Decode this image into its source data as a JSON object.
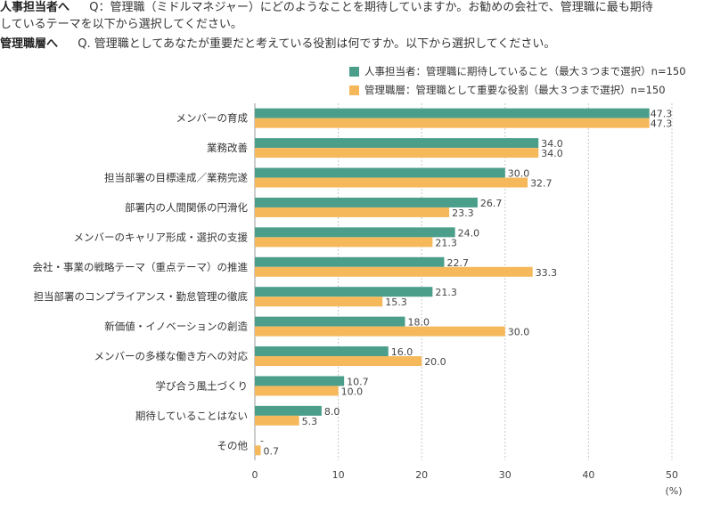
{
  "header": {
    "q1_tag": "人事担当者へ",
    "q1_text_line1": "Q：管理職（ミドルマネジャー）にどのようなことを期待していますか。お勧めの会社で、管理職に最も期待",
    "q1_text_line2": "しているテーマを以下から選択してください。",
    "q2_tag": "管理職層へ",
    "q2_text": "Q. 管理職としてあなたが重要だと考えている役割は何ですか。以下から選択してください。"
  },
  "chart_data": {
    "type": "bar",
    "orientation": "horizontal",
    "categories": [
      "メンバーの育成",
      "業務改善",
      "担当部署の目標達成／業務完遂",
      "部署内の人間関係の円滑化",
      "メンバーのキャリア形成・選択の支援",
      "会社・事業の戦略テーマ（重点テーマ）の推進",
      "担当部署のコンプライアンス・勤怠管理の徹底",
      "新価値・イノベーションの創造",
      "メンバーの多様な働き方への対応",
      "学び合う風土づくり",
      "期待していることはない",
      "その他"
    ],
    "series": [
      {
        "name": "人事担当者：管理職に期待していること（最大３つまで選択）n=150",
        "color": "#4a9e8a",
        "values": [
          47.3,
          34.0,
          30.0,
          26.7,
          24.0,
          22.7,
          21.3,
          18.0,
          16.0,
          10.7,
          8.0,
          null
        ],
        "labels": [
          "47.3",
          "34.0",
          "30.0",
          "26.7",
          "24.0",
          "22.7",
          "21.3",
          "18.0",
          "16.0",
          "10.7",
          "8.0",
          "-"
        ]
      },
      {
        "name": "管理職層：管理職として重要な役割（最大３つまで選択）n=150",
        "color": "#f5b95c",
        "values": [
          47.3,
          34.0,
          32.7,
          23.3,
          21.3,
          33.3,
          15.3,
          30.0,
          20.0,
          10.0,
          5.3,
          0.7
        ],
        "labels": [
          "47.3",
          "34.0",
          "32.7",
          "23.3",
          "21.3",
          "33.3",
          "15.3",
          "30.0",
          "20.0",
          "10.0",
          "5.3",
          "0.7"
        ]
      }
    ],
    "xlim": [
      0,
      50
    ],
    "xticks": [
      "0",
      "10",
      "20",
      "30",
      "40",
      "50"
    ],
    "xlabel": "(%)",
    "grid": true,
    "legend": "top-right"
  }
}
